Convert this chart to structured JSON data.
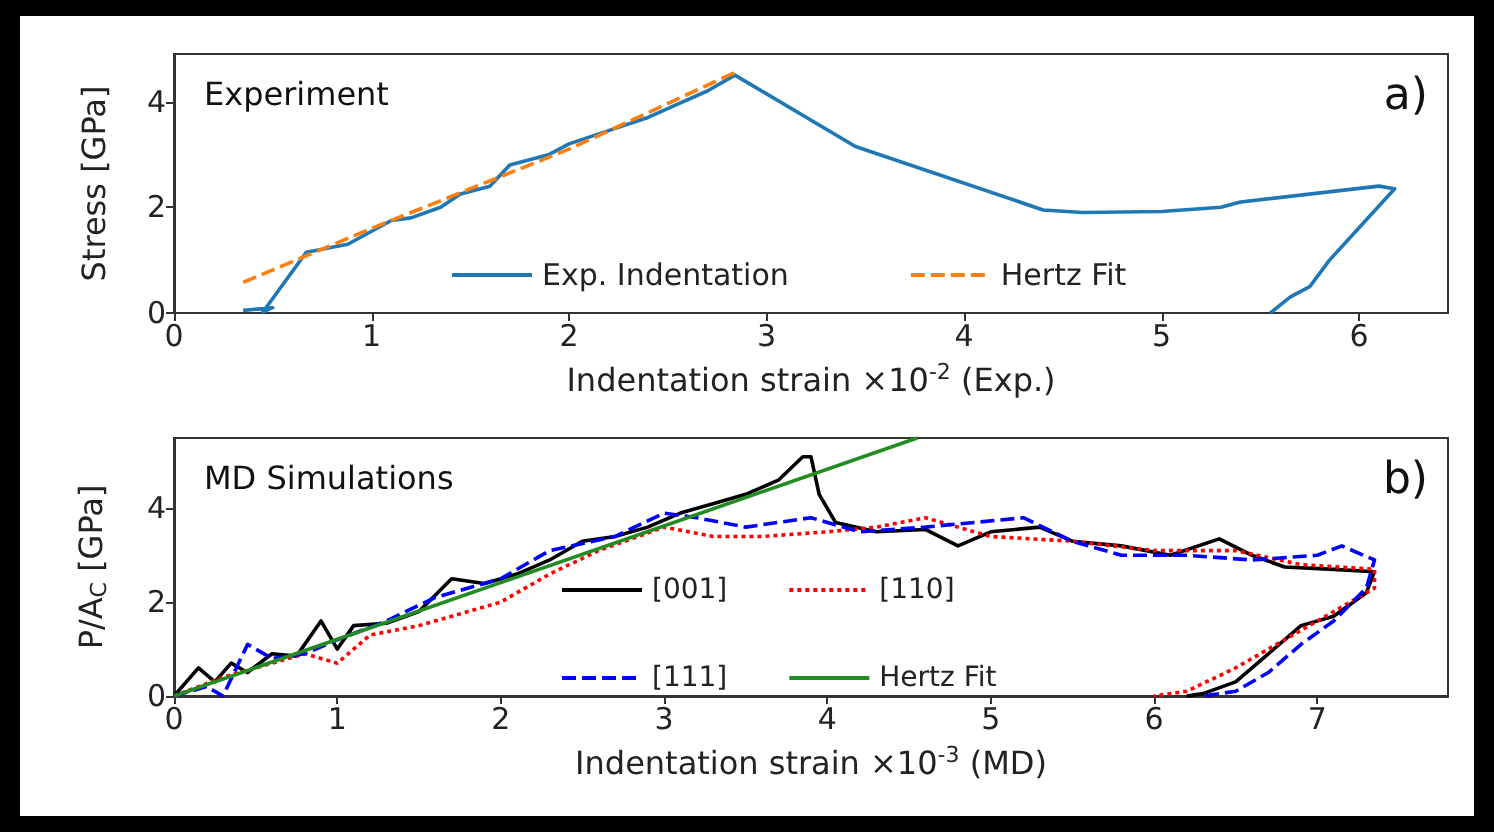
{
  "chart_data": [
    {
      "type": "line",
      "annotations": [
        "Experiment",
        "a)"
      ],
      "xlabel": "Indentation strain ×10$^{-2}$ (Exp.)",
      "ylabel": "Stress [GPa]",
      "xlim": [
        0,
        6.45
      ],
      "xticks": [
        0,
        1,
        2,
        3,
        4,
        5,
        6
      ],
      "ylim": [
        0,
        4.9
      ],
      "yticks": [
        0,
        2,
        4
      ],
      "grid": false,
      "legend": "bottom",
      "marker": "none",
      "series": [
        {
          "name": "Exp. Indentation",
          "color": "#1f77b4",
          "line_style": "solid",
          "x": [
            0.35,
            0.5,
            0.45,
            0.67,
            0.88,
            1.1,
            1.2,
            1.35,
            1.45,
            1.6,
            1.65,
            1.7,
            1.9,
            2.0,
            2.2,
            2.4,
            2.55,
            2.7,
            2.84,
            3.45,
            4.4,
            4.6,
            5.0,
            5.3,
            5.4,
            6.1,
            6.18,
            5.85,
            5.75,
            5.65,
            5.55
          ],
          "values": [
            0.05,
            0.1,
            0.02,
            1.15,
            1.3,
            1.75,
            1.8,
            2.0,
            2.25,
            2.4,
            2.6,
            2.8,
            3.0,
            3.2,
            3.45,
            3.7,
            3.95,
            4.2,
            4.5,
            3.15,
            1.95,
            1.9,
            1.92,
            2.0,
            2.1,
            2.4,
            2.35,
            1.0,
            0.5,
            0.3,
            0
          ]
        },
        {
          "name": "Hertz Fit",
          "color": "#ff7f0e",
          "line_style": "dashed",
          "x": [
            0.35,
            1,
            2,
            2.84
          ],
          "values": [
            0.58,
            1.6,
            3.1,
            4.55
          ]
        }
      ]
    },
    {
      "type": "line",
      "annotations": [
        "MD Simulations",
        "b)"
      ],
      "xlabel": "Indentation strain ×10$^{-3}$ (MD)",
      "ylabel": "P/A$_{C}$ [GPa]",
      "xlim": [
        0,
        7.8
      ],
      "xticks": [
        0,
        1,
        2,
        3,
        4,
        5,
        6,
        7
      ],
      "ylim": [
        0,
        5.5
      ],
      "yticks": [
        0,
        2,
        4
      ],
      "grid": false,
      "legend": "bottom",
      "marker": "none",
      "series": [
        {
          "name": "[001]",
          "color": "#000000",
          "line_style": "solid",
          "x": [
            0,
            0.15,
            0.25,
            0.35,
            0.45,
            0.6,
            0.75,
            0.9,
            1.0,
            1.1,
            1.3,
            1.5,
            1.7,
            1.9,
            2.1,
            2.3,
            2.5,
            2.7,
            2.9,
            3.1,
            3.3,
            3.5,
            3.7,
            3.85,
            3.9,
            3.95,
            4.05,
            4.3,
            4.6,
            4.8,
            5.0,
            5.3,
            5.5,
            5.8,
            6.1,
            6.4,
            6.6,
            6.8,
            7.1,
            7.35,
            7.3,
            7.1,
            6.9,
            6.7,
            6.5,
            6.3,
            6.2
          ],
          "values": [
            0,
            0.6,
            0.3,
            0.7,
            0.5,
            0.9,
            0.85,
            1.6,
            1.0,
            1.5,
            1.55,
            1.8,
            2.5,
            2.4,
            2.6,
            2.9,
            3.3,
            3.4,
            3.6,
            3.9,
            4.1,
            4.3,
            4.6,
            5.1,
            5.1,
            4.3,
            3.7,
            3.5,
            3.55,
            3.2,
            3.5,
            3.6,
            3.3,
            3.2,
            3.0,
            3.35,
            3.0,
            2.75,
            2.7,
            2.65,
            2.2,
            1.7,
            1.5,
            0.9,
            0.3,
            0.05,
            0
          ]
        },
        {
          "name": "[110]",
          "color": "#ff0000",
          "line_style": "dotted",
          "x": [
            0,
            0.3,
            0.5,
            0.8,
            1.0,
            1.2,
            1.5,
            1.8,
            2.0,
            2.3,
            2.6,
            3.0,
            3.3,
            3.6,
            4.0,
            4.3,
            4.6,
            5.0,
            5.5,
            6.0,
            6.5,
            6.9,
            7.35,
            7.35,
            7.1,
            6.8,
            6.5,
            6.2,
            6.0
          ],
          "values": [
            0,
            0.4,
            0.6,
            0.9,
            0.7,
            1.3,
            1.5,
            1.8,
            2.0,
            2.6,
            3.1,
            3.6,
            3.4,
            3.4,
            3.5,
            3.6,
            3.8,
            3.4,
            3.3,
            3.1,
            3.1,
            2.8,
            2.7,
            2.3,
            1.8,
            1.2,
            0.6,
            0.1,
            0
          ]
        },
        {
          "name": "[111]",
          "color": "#0000ff",
          "line_style": "dashed",
          "x": [
            0,
            0.2,
            0.3,
            0.45,
            0.6,
            0.8,
            1.0,
            1.3,
            1.6,
            2.0,
            2.3,
            2.7,
            3.0,
            3.2,
            3.5,
            3.9,
            4.2,
            4.6,
            5.2,
            5.5,
            5.8,
            6.2,
            6.6,
            7.0,
            7.15,
            7.35,
            7.3,
            7.1,
            6.9,
            6.7,
            6.5,
            6.3
          ],
          "values": [
            0,
            0.2,
            0,
            1.1,
            0.8,
            0.9,
            1.2,
            1.6,
            2.1,
            2.5,
            3.1,
            3.4,
            3.9,
            3.8,
            3.6,
            3.8,
            3.5,
            3.6,
            3.8,
            3.3,
            3.0,
            3.0,
            2.9,
            3.0,
            3.2,
            2.9,
            2.3,
            1.6,
            1.1,
            0.5,
            0.1,
            0
          ]
        },
        {
          "name": "Hertz Fit",
          "color": "#228b22",
          "line_style": "solid",
          "x": [
            0,
            4.55
          ],
          "values": [
            0,
            5.5
          ]
        }
      ]
    }
  ]
}
